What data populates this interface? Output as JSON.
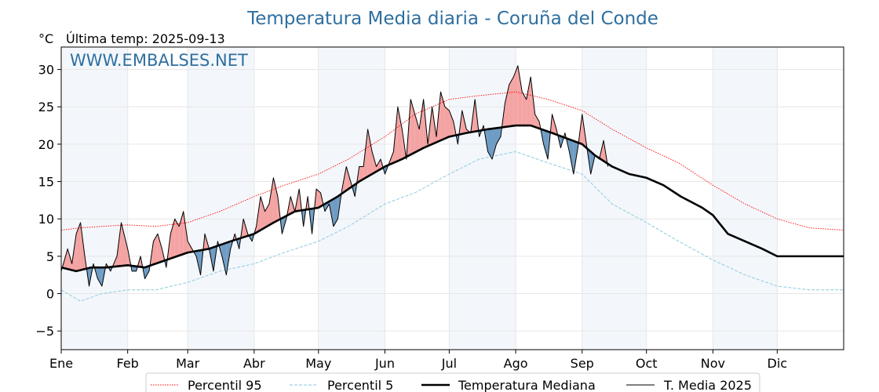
{
  "chart_data": {
    "type": "line",
    "title": "Temperatura Media diaria - Coruña del Conde",
    "unit_label": "°C",
    "last_temp_label": "Última temp: 2025-09-13",
    "watermark": "WWW.EMBALSES.NET",
    "xlabel": "",
    "ylabel": "°C",
    "ylim": [
      -7.5,
      33
    ],
    "xlim": [
      1,
      366
    ],
    "y_ticks": [
      -5,
      0,
      5,
      10,
      15,
      20,
      25,
      30
    ],
    "y_tick_labels": [
      "−5",
      "0",
      "5",
      "10",
      "15",
      "20",
      "25",
      "30"
    ],
    "months": [
      {
        "label": "Ene",
        "day": 1
      },
      {
        "label": "Feb",
        "day": 32
      },
      {
        "label": "Mar",
        "day": 60
      },
      {
        "label": "Abr",
        "day": 91
      },
      {
        "label": "May",
        "day": 121
      },
      {
        "label": "Jun",
        "day": 152
      },
      {
        "label": "Jul",
        "day": 182
      },
      {
        "label": "Ago",
        "day": 213
      },
      {
        "label": "Sep",
        "day": 244
      },
      {
        "label": "Oct",
        "day": 274
      },
      {
        "label": "Nov",
        "day": 305
      },
      {
        "label": "Dic",
        "day": 335
      }
    ],
    "shaded_bands": [
      [
        1,
        32
      ],
      [
        60,
        91
      ],
      [
        121,
        152
      ],
      [
        182,
        213
      ],
      [
        244,
        274
      ],
      [
        305,
        335
      ]
    ],
    "grid": true,
    "legend_position": "bottom-center",
    "series": [
      {
        "name": "Percentil 95",
        "color": "#ff0000",
        "style": "dotted",
        "x": [
          1,
          10,
          20,
          32,
          45,
          60,
          75,
          91,
          105,
          121,
          135,
          152,
          166,
          182,
          196,
          213,
          228,
          244,
          258,
          274,
          289,
          305,
          320,
          335,
          350,
          366
        ],
        "values": [
          8.5,
          8.8,
          9.0,
          9.2,
          9.0,
          9.5,
          11.0,
          13.0,
          14.5,
          16.0,
          18.0,
          21.0,
          24.0,
          26.0,
          26.5,
          27.0,
          26.0,
          24.5,
          22.0,
          19.5,
          17.5,
          14.5,
          12.0,
          10.0,
          8.8,
          8.5
        ]
      },
      {
        "name": "Percentil 5",
        "color": "#9fd1e3",
        "style": "dashed",
        "x": [
          1,
          10,
          20,
          32,
          45,
          60,
          75,
          91,
          105,
          121,
          135,
          152,
          166,
          182,
          196,
          213,
          228,
          244,
          258,
          274,
          289,
          305,
          320,
          335,
          350,
          366
        ],
        "values": [
          0.5,
          -1.0,
          0.0,
          0.5,
          0.5,
          1.5,
          3.0,
          4.0,
          5.5,
          7.0,
          9.0,
          12.0,
          13.5,
          16.0,
          18.0,
          19.0,
          17.5,
          16.0,
          12.0,
          9.5,
          7.0,
          4.5,
          2.5,
          1.0,
          0.5,
          0.5
        ]
      },
      {
        "name": "Temperatura Mediana",
        "color": "#000000",
        "style": "thick",
        "x": [
          1,
          8,
          15,
          22,
          32,
          40,
          50,
          60,
          70,
          80,
          91,
          100,
          110,
          121,
          130,
          140,
          152,
          160,
          170,
          182,
          190,
          200,
          213,
          220,
          230,
          244,
          250,
          258,
          266,
          274,
          282,
          290,
          300,
          305,
          312,
          320,
          328,
          335,
          345,
          355,
          366
        ],
        "values": [
          3.5,
          3.0,
          3.5,
          3.5,
          3.8,
          3.5,
          4.5,
          5.5,
          6.0,
          7.0,
          8.0,
          9.5,
          11.0,
          11.5,
          13.0,
          15.0,
          17.0,
          18.0,
          19.5,
          21.0,
          21.5,
          22.0,
          22.5,
          22.5,
          21.5,
          20.0,
          18.5,
          17.0,
          16.0,
          15.5,
          14.5,
          13.0,
          11.5,
          10.5,
          8.0,
          7.0,
          6.0,
          5.0,
          5.0,
          5.0,
          5.0
        ]
      },
      {
        "name": "T. Media 2025",
        "color": "#000000",
        "style": "thin",
        "x": [
          1,
          4,
          6,
          8,
          10,
          12,
          14,
          16,
          18,
          20,
          22,
          24,
          27,
          29,
          32,
          34,
          36,
          38,
          40,
          42,
          44,
          46,
          48,
          50,
          52,
          54,
          56,
          58,
          60,
          62,
          64,
          66,
          68,
          70,
          72,
          74,
          76,
          78,
          80,
          82,
          84,
          86,
          88,
          90,
          92,
          94,
          96,
          98,
          100,
          102,
          104,
          106,
          108,
          110,
          112,
          114,
          116,
          118,
          120,
          122,
          124,
          126,
          128,
          130,
          132,
          134,
          136,
          138,
          140,
          142,
          144,
          146,
          148,
          150,
          152,
          154,
          156,
          158,
          160,
          162,
          164,
          166,
          168,
          170,
          172,
          174,
          176,
          178,
          180,
          182,
          184,
          186,
          188,
          190,
          192,
          194,
          196,
          198,
          200,
          202,
          204,
          206,
          208,
          210,
          212,
          214,
          216,
          218,
          220,
          222,
          224,
          226,
          228,
          230,
          232,
          234,
          236,
          238,
          240,
          242,
          244,
          246,
          248,
          250,
          252,
          254,
          256
        ],
        "values": [
          3.0,
          6.0,
          4.0,
          8.0,
          9.5,
          5.0,
          1.0,
          4.0,
          2.0,
          1.0,
          4.0,
          3.0,
          5.0,
          9.5,
          6.0,
          3.0,
          3.0,
          5.0,
          2.0,
          3.0,
          7.0,
          8.0,
          6.0,
          3.5,
          8.0,
          10.0,
          9.0,
          11.0,
          7.0,
          6.0,
          5.0,
          2.5,
          8.0,
          6.0,
          3.0,
          7.0,
          5.0,
          2.5,
          6.0,
          8.0,
          6.0,
          10.0,
          8.0,
          7.0,
          9.0,
          13.0,
          11.0,
          12.0,
          15.5,
          13.0,
          8.0,
          10.0,
          13.0,
          11.0,
          14.0,
          9.0,
          13.0,
          8.0,
          14.0,
          13.5,
          11.0,
          12.0,
          9.0,
          10.0,
          14.0,
          17.0,
          15.0,
          13.0,
          17.0,
          17.0,
          22.0,
          19.0,
          17.0,
          18.0,
          16.0,
          17.5,
          19.0,
          25.0,
          22.0,
          18.0,
          26.0,
          24.0,
          22.0,
          26.0,
          20.0,
          25.0,
          21.0,
          27.0,
          25.0,
          24.5,
          23.0,
          20.0,
          24.5,
          22.0,
          21.5,
          26.0,
          21.0,
          22.5,
          19.0,
          18.0,
          20.0,
          21.0,
          25.5,
          28.0,
          29.0,
          30.5,
          27.0,
          26.0,
          29.0,
          24.0,
          23.0,
          20.0,
          18.0,
          24.0,
          22.0,
          19.5,
          21.5,
          19.0,
          16.0,
          19.5,
          24.0,
          20.0,
          16.0,
          18.5,
          18.0,
          20.5,
          17.0
        ]
      }
    ],
    "fill_colors": {
      "above_median": "#f4a3a3",
      "below_median": "#6f9cc4"
    }
  }
}
